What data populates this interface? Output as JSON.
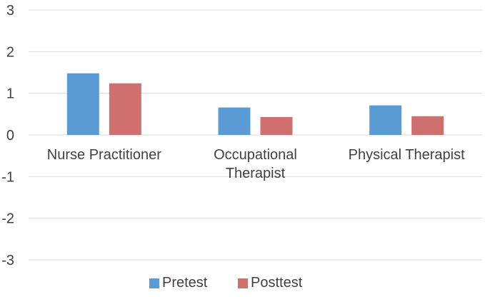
{
  "chart_data": {
    "type": "bar",
    "categories": [
      "Nurse Practitioner",
      "Occupational\nTherapist",
      "Physical Therapist"
    ],
    "series": [
      {
        "name": "Pretest",
        "values": [
          1.48,
          0.66,
          0.71
        ],
        "color": "#5B9BD5"
      },
      {
        "name": "Posttest",
        "values": [
          1.24,
          0.43,
          0.45
        ],
        "color": "#D0706E"
      }
    ],
    "ylim": [
      -3,
      3
    ],
    "yticks": [
      3,
      2,
      1,
      0,
      -1,
      -2,
      -3
    ],
    "title": "",
    "xlabel": "",
    "ylabel": "",
    "grid": true,
    "legend_position": "bottom",
    "colors": {
      "grid": "#D9D9D9",
      "text": "#404040"
    }
  }
}
